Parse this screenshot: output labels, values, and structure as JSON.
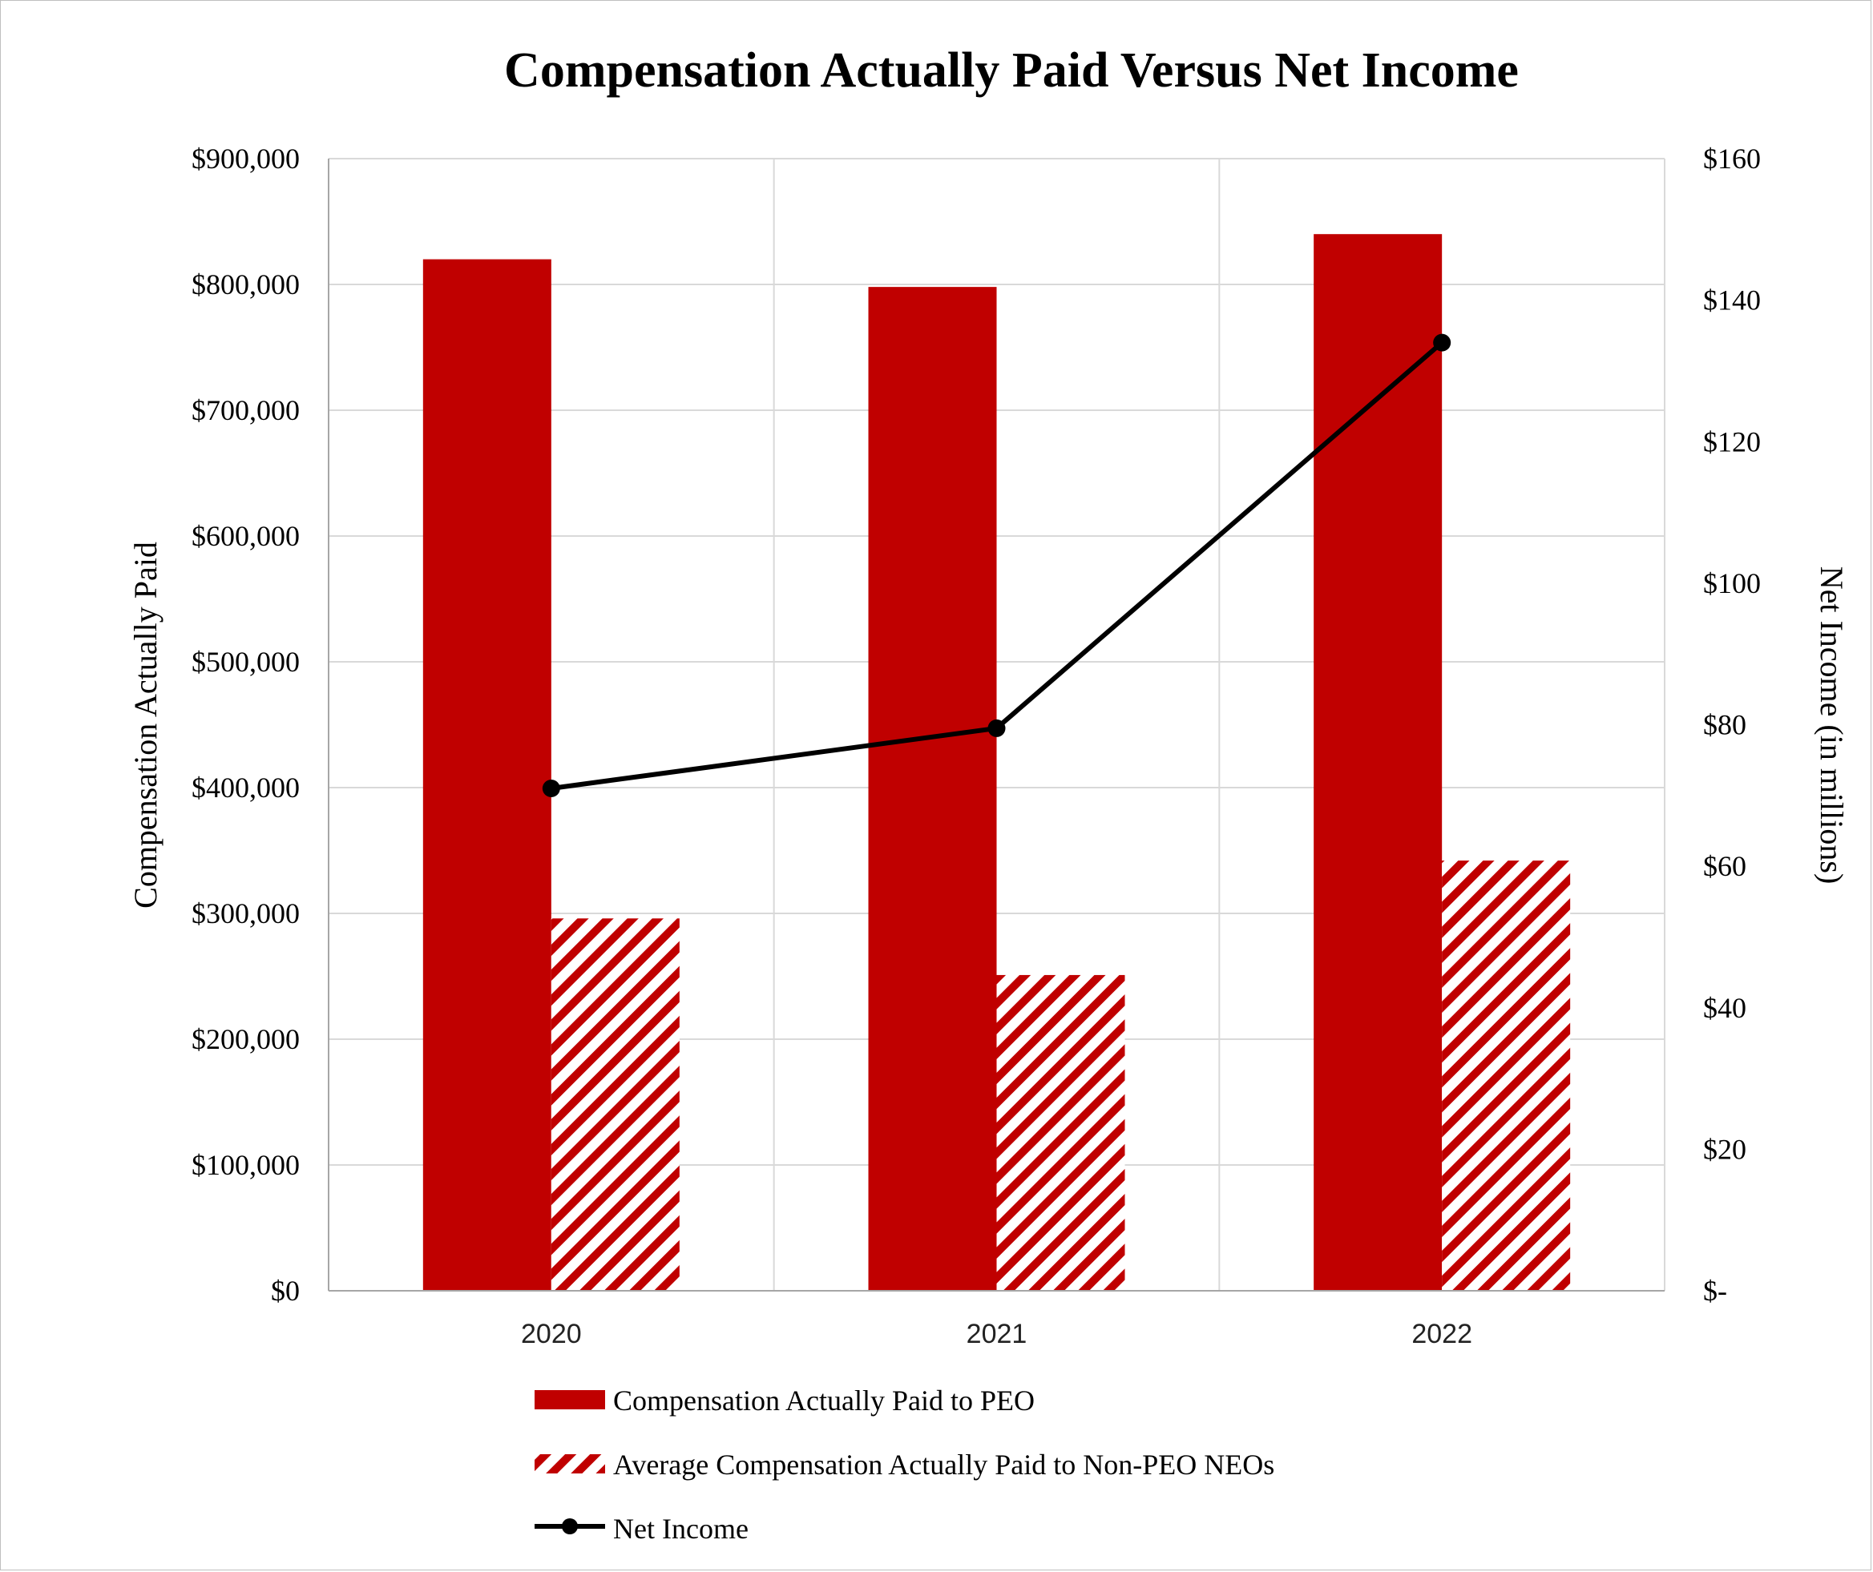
{
  "chart_data": {
    "type": "bar",
    "title": "Compensation Actually Paid Versus Net Income",
    "categories": [
      "2020",
      "2021",
      "2022"
    ],
    "y_left": {
      "label": "Compensation Actually Paid",
      "range": [
        0,
        900000
      ],
      "ticks": [
        "$0",
        "$100,000",
        "$200,000",
        "$300,000",
        "$400,000",
        "$500,000",
        "$600,000",
        "$700,000",
        "$800,000",
        "$900,000"
      ]
    },
    "y_right": {
      "label": "Net Income  (in millions)",
      "range": [
        0,
        160
      ],
      "ticks": [
        "$-",
        "$20",
        "$40",
        "$60",
        "$80",
        "$100",
        "$120",
        "$140",
        "$160"
      ]
    },
    "series": [
      {
        "name": "Compensation Actually Paid to PEO",
        "type": "bar",
        "axis": "left",
        "style": "solid",
        "color": "#c00000",
        "values": [
          820000,
          798000,
          840000
        ]
      },
      {
        "name": "Average Compensation Actually Paid to Non-PEO NEOs",
        "type": "bar",
        "axis": "left",
        "style": "hatched",
        "color": "#c00000",
        "values": [
          296000,
          251000,
          342000
        ]
      },
      {
        "name": "Net Income",
        "type": "line",
        "axis": "right",
        "color": "#000000",
        "values": [
          71,
          79.5,
          134
        ]
      }
    ],
    "grid": true,
    "legend_position": "bottom"
  }
}
